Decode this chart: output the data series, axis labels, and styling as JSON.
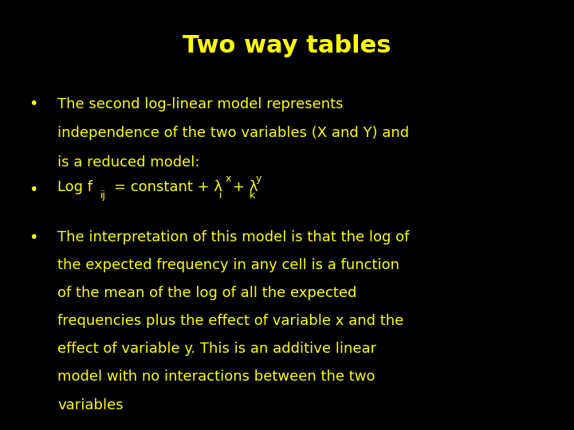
{
  "background_color": "#000000",
  "title": "Two way tables",
  "title_color": "#FFFF00",
  "title_fontsize": 22,
  "text_color": "#FFFF00",
  "bullet1_line1": "The second log-linear model represents",
  "bullet1_line2": "independence of the two variables (X and Y) and",
  "bullet1_line3": "is a reduced model:",
  "bullet3_line1": "The interpretation of this model is that the log of",
  "bullet3_line2": "the expected frequency in any cell is a function",
  "bullet3_line3": "of the mean of the log of all the expected",
  "bullet3_line4": "frequencies plus the effect of variable x and the",
  "bullet3_line5": "effect of variable y. This is an additive linear",
  "bullet3_line6": "model with no interactions between the two",
  "bullet3_line7": "variables",
  "body_fontsize": 13,
  "figsize": [
    7.2,
    5.4
  ],
  "dpi": 100
}
